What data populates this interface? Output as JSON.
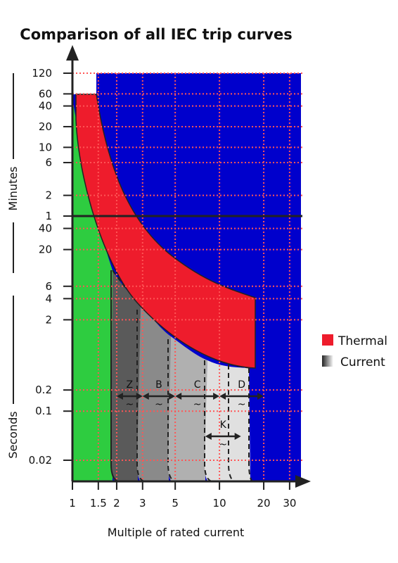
{
  "chart_data": {
    "type": "area",
    "title": "Comparison of all IEC trip curves",
    "xlabel": "Multiple of rated current",
    "x_scale": "log",
    "xlim": [
      1,
      40
    ],
    "x_ticks": [
      {
        "label": "1",
        "value": 1
      },
      {
        "label": "1.5",
        "value": 1.5
      },
      {
        "label": "2",
        "value": 2
      },
      {
        "label": "3",
        "value": 3
      },
      {
        "label": "5",
        "value": 5
      },
      {
        "label": "10",
        "value": 10
      },
      {
        "label": "20",
        "value": 20
      },
      {
        "label": "30",
        "value": 30
      }
    ],
    "y_scale": "log",
    "y_axis_minutes": {
      "label": "Minutes",
      "ticks": [
        {
          "label": "120",
          "value": 120
        },
        {
          "label": "60",
          "value": 60
        },
        {
          "label": "40",
          "value": 40
        },
        {
          "label": "20",
          "value": 20
        },
        {
          "label": "10",
          "value": 10
        },
        {
          "label": "6",
          "value": 6
        },
        {
          "label": "2",
          "value": 2
        },
        {
          "label": "1",
          "value": 1
        }
      ]
    },
    "y_axis_seconds": {
      "label": "Seconds",
      "ticks": [
        {
          "label": "40",
          "value": 40
        },
        {
          "label": "20",
          "value": 20
        },
        {
          "label": "6",
          "value": 6
        },
        {
          "label": "4",
          "value": 4
        },
        {
          "label": "2",
          "value": 2
        },
        {
          "label": "0.2",
          "value": 0.2
        },
        {
          "label": "0.1",
          "value": 0.1
        },
        {
          "label": "0.02",
          "value": 0.02
        }
      ]
    },
    "legend": {
      "placement": "right",
      "entries": [
        {
          "label": "Thermal",
          "color": "#ee1c2c"
        },
        {
          "label": "Current",
          "color": "#888888"
        }
      ]
    },
    "bands": [
      {
        "label": "Z",
        "from": 2,
        "to": 3,
        "color": "#5a5a5a"
      },
      {
        "label": "B",
        "from": 3,
        "to": 5,
        "color": "#888888"
      },
      {
        "label": "C",
        "from": 5,
        "to": 10,
        "color": "#b0b0b0"
      },
      {
        "label": "D",
        "from": 10,
        "to": 20,
        "color": "#e0e0e0"
      },
      {
        "label": "K",
        "from": 8,
        "to": 14,
        "color": "#e0e0e0"
      }
    ],
    "band_tilde": "~",
    "colors": {
      "trip_region": "#0000cc",
      "no_trip_region": "#2ecc40",
      "thermal": "#ee1c2c",
      "grid": "#ff4d4d"
    },
    "grid": true
  }
}
